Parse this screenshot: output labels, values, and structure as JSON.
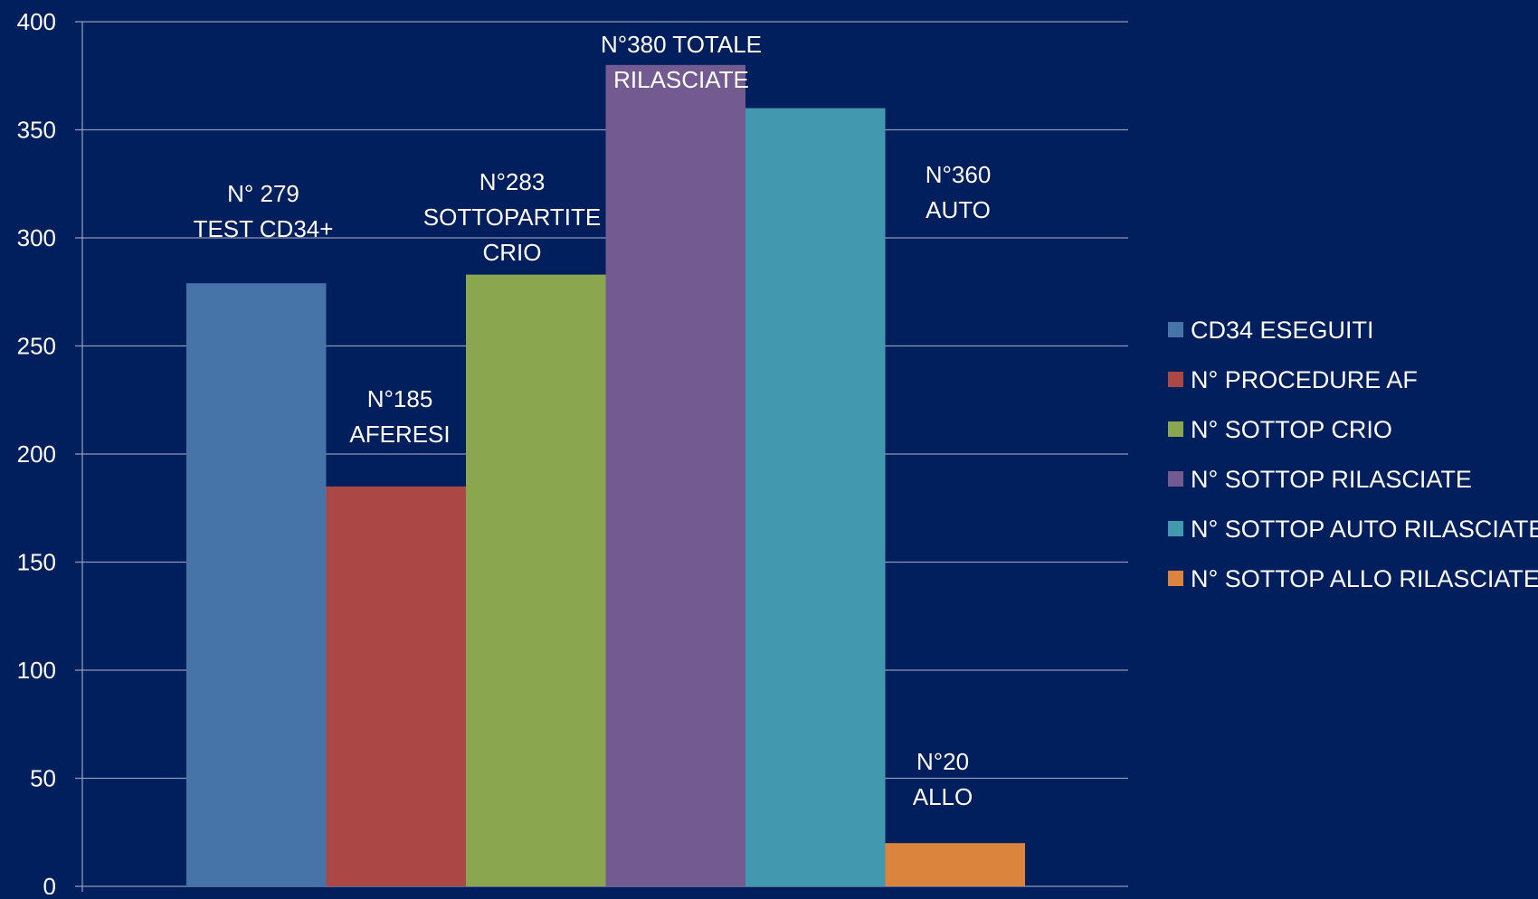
{
  "chart_data": {
    "type": "bar",
    "ylim": [
      0,
      400
    ],
    "y_ticks": [
      "0",
      "50",
      "100",
      "150",
      "200",
      "250",
      "300",
      "350",
      "400"
    ],
    "grid": true,
    "legend_position": "right",
    "background": "#001f5c",
    "series": [
      {
        "name": "CD34 ESEGUITI",
        "value": 279,
        "color": "#4674a9",
        "label_lines": [
          "N° 279",
          "TEST CD34+"
        ]
      },
      {
        "name": "N° PROCEDURE AF",
        "value": 185,
        "color": "#ab4744",
        "label_lines": [
          "N°185",
          "AFERESI"
        ]
      },
      {
        "name": "N° SOTTOP CRIO",
        "value": 283,
        "color": "#8aa64f",
        "label_lines": [
          "N°283",
          "SOTTOPARTITE",
          "CRIO"
        ]
      },
      {
        "name": "N° SOTTOP RILASCIATE",
        "value": 380,
        "color": "#735b92",
        "label_lines": [
          "N°380 TOTALE",
          "RILASCIATE"
        ]
      },
      {
        "name": "N° SOTTOP AUTO RILASCIATE",
        "value": 360,
        "color": "#4298af",
        "label_lines": [
          "N°360",
          "AUTO"
        ]
      },
      {
        "name": "N° SOTTOP ALLO RILASCIATE",
        "value": 20,
        "color": "#db843d",
        "label_lines": [
          "N°20",
          "ALLO"
        ]
      }
    ]
  }
}
